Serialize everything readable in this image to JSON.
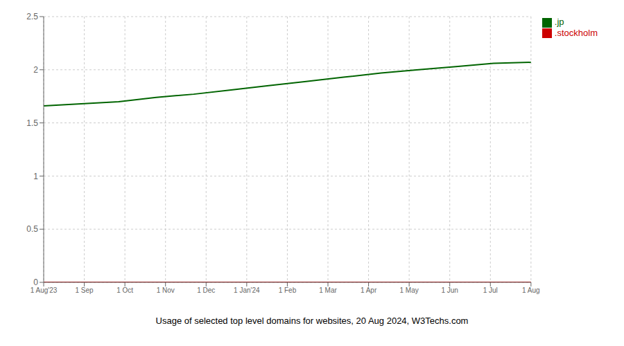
{
  "chart_data": {
    "type": "line",
    "title": "Usage of selected top level domains for websites, 20 Aug 2024, W3Techs.com",
    "x": [
      0,
      1,
      2,
      3,
      4,
      5,
      6,
      7,
      8,
      9,
      10,
      11,
      12,
      13
    ],
    "series": [
      {
        "name": ".jp",
        "color": "#006400",
        "values": [
          1.66,
          1.68,
          1.7,
          1.74,
          1.77,
          1.81,
          1.85,
          1.89,
          1.93,
          1.97,
          2.0,
          2.03,
          2.06,
          2.07
        ]
      },
      {
        "name": ".stockholm",
        "color": "#cc0000",
        "values": [
          0.0,
          0.0,
          0.0,
          0.0,
          0.0,
          0.0,
          0.0,
          0.0,
          0.0,
          0.0,
          0.0,
          0.0,
          0.0,
          0.0
        ]
      }
    ],
    "xlim": [
      0,
      13
    ],
    "xticks": [
      {
        "value": 0,
        "label": "1 Aug'23"
      },
      {
        "value": 1.0833333333333333,
        "label": "1 Sep"
      },
      {
        "value": 2.1666666666666665,
        "label": "1 Oct"
      },
      {
        "value": 3.25,
        "label": "1 Nov"
      },
      {
        "value": 4.333333333333333,
        "label": "1 Dec"
      },
      {
        "value": 5.416666666666666,
        "label": "1 Jan'24"
      },
      {
        "value": 6.5,
        "label": "1 Feb"
      },
      {
        "value": 7.583333333333333,
        "label": "1 Mar"
      },
      {
        "value": 8.666666666666666,
        "label": "1 Apr"
      },
      {
        "value": 9.75,
        "label": "1 May"
      },
      {
        "value": 10.833333333333332,
        "label": "1 Jun"
      },
      {
        "value": 11.916666666666666,
        "label": "1 Jul"
      },
      {
        "value": 13,
        "label": "1 Aug"
      }
    ],
    "ylim": [
      0,
      2.5
    ],
    "yticks": [
      0,
      0.5,
      1,
      1.5,
      2,
      2.5
    ],
    "grid": true,
    "legend": "upper right"
  }
}
